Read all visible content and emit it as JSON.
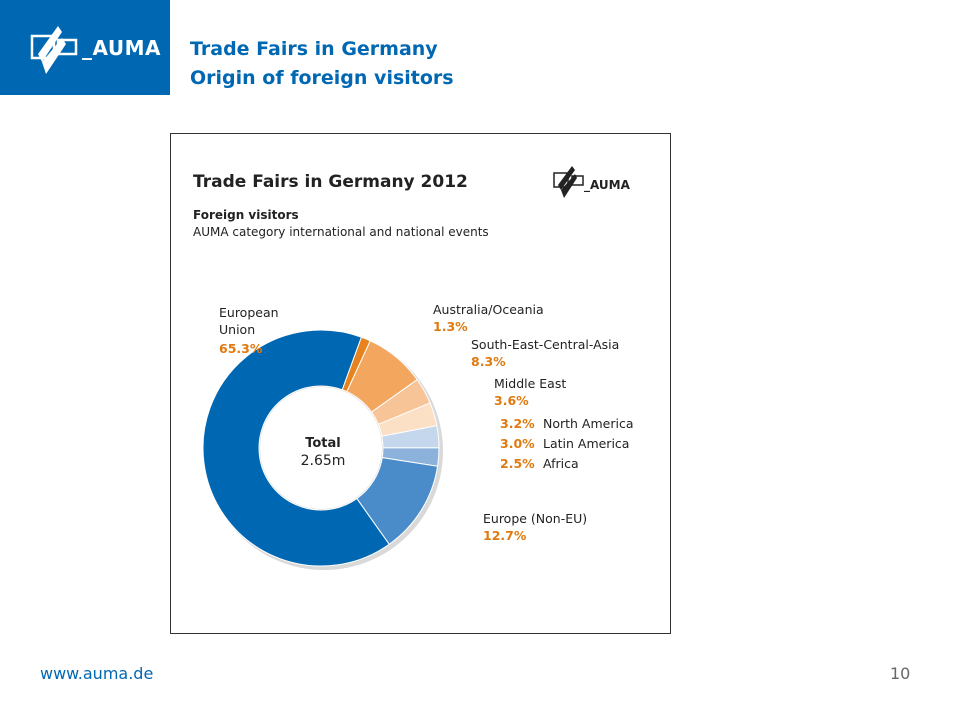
{
  "header": {
    "brand": "_AUMA",
    "title_line1": "Trade Fairs in Germany",
    "title_line2": "Origin of foreign visitors"
  },
  "chart_data": {
    "type": "pie",
    "title": "Trade Fairs in Germany 2012",
    "subtitle": "Foreign visitors",
    "description": "AUMA category international and national events",
    "brand": "_AUMA",
    "center_label": "Total",
    "center_value": "2.65m",
    "value_unit": "%",
    "slices": [
      {
        "label": "Australia/Oceania",
        "value": 1.3,
        "display": "1.3%",
        "color": "#e8821e"
      },
      {
        "label": "South-East-Central-Asia",
        "value": 8.3,
        "display": "8.3%",
        "color": "#f2a65e"
      },
      {
        "label": "Middle East",
        "value": 3.6,
        "display": "3.6%",
        "color": "#f7c497"
      },
      {
        "label": "North America",
        "value": 3.2,
        "display": "3.2%",
        "color": "#fbe0c6"
      },
      {
        "label": "Latin America",
        "value": 3.0,
        "display": "3.0%",
        "color": "#c5d7ec"
      },
      {
        "label": "Africa",
        "value": 2.5,
        "display": "2.5%",
        "color": "#8cb1db"
      },
      {
        "label": "Europe (Non-EU)",
        "value": 12.7,
        "display": "12.7%",
        "color": "#4a8cc9"
      },
      {
        "label": "European Union",
        "label_lines": [
          "European",
          "Union"
        ],
        "value": 65.3,
        "display": "65.3%",
        "color": "#0068b3"
      }
    ],
    "label_colors": {
      "name": "#222222",
      "value": "#e07a10"
    }
  },
  "footer": {
    "url": "www.auma.de",
    "page_number": "10"
  }
}
